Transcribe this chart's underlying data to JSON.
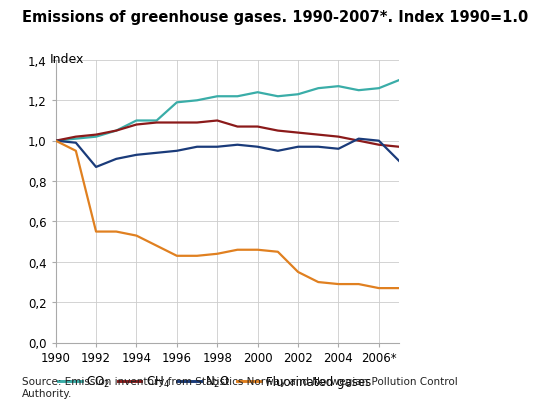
{
  "title": "Emissions of greenhouse gases. 1990-2007*. Index 1990=1.0",
  "index_label": "Index",
  "source_text": "Source: Emission inventory from Statistics Norway and Norwegian Pollution Control\nAuthority.",
  "years": [
    1990,
    1991,
    1992,
    1993,
    1994,
    1995,
    1996,
    1997,
    1998,
    1999,
    2000,
    2001,
    2002,
    2003,
    2004,
    2005,
    2006,
    2007
  ],
  "xtick_labels": [
    "1990",
    "1992",
    "1994",
    "1996",
    "1998",
    "2000",
    "2002",
    "2004",
    "2006*"
  ],
  "xtick_positions": [
    1990,
    1992,
    1994,
    1996,
    1998,
    2000,
    2002,
    2004,
    2006
  ],
  "CO2": [
    1.0,
    1.01,
    1.02,
    1.05,
    1.1,
    1.1,
    1.19,
    1.2,
    1.22,
    1.22,
    1.24,
    1.22,
    1.23,
    1.26,
    1.27,
    1.25,
    1.26,
    1.3
  ],
  "CH4": [
    1.0,
    1.02,
    1.03,
    1.05,
    1.08,
    1.09,
    1.09,
    1.09,
    1.1,
    1.07,
    1.07,
    1.05,
    1.04,
    1.03,
    1.02,
    1.0,
    0.98,
    0.97
  ],
  "N2O": [
    1.0,
    0.99,
    0.87,
    0.91,
    0.93,
    0.94,
    0.95,
    0.97,
    0.97,
    0.98,
    0.97,
    0.95,
    0.97,
    0.97,
    0.96,
    1.01,
    1.0,
    0.9
  ],
  "fluorinated": [
    1.0,
    0.95,
    0.55,
    0.55,
    0.53,
    0.48,
    0.43,
    0.43,
    0.44,
    0.46,
    0.46,
    0.45,
    0.35,
    0.3,
    0.29,
    0.29,
    0.27,
    0.27
  ],
  "CO2_color": "#3aada8",
  "CH4_color": "#8b1a1a",
  "N2O_color": "#1a3b7a",
  "fluorinated_color": "#e08020",
  "ylim": [
    0.0,
    1.4
  ],
  "xlim": [
    1990,
    2007
  ],
  "ytick_vals": [
    0.0,
    0.2,
    0.4,
    0.6,
    0.8,
    1.0,
    1.2,
    1.4
  ],
  "ytick_labels": [
    "0,0",
    "0,2",
    "0,4",
    "0,6",
    "0,8",
    "1,0",
    "1,2",
    "1,4"
  ],
  "grid_color": "#cccccc",
  "bg_color": "#ffffff",
  "line_width": 1.6,
  "legend_CO2": "CO$_2$",
  "legend_CH4": "CH$_4$",
  "legend_N2O": "N$_2$O",
  "legend_fluorinated": "Fluorinated gases",
  "title_fontsize": 10.5,
  "index_label_fontsize": 9,
  "tick_fontsize": 8.5,
  "legend_fontsize": 8.5,
  "source_fontsize": 7.5
}
